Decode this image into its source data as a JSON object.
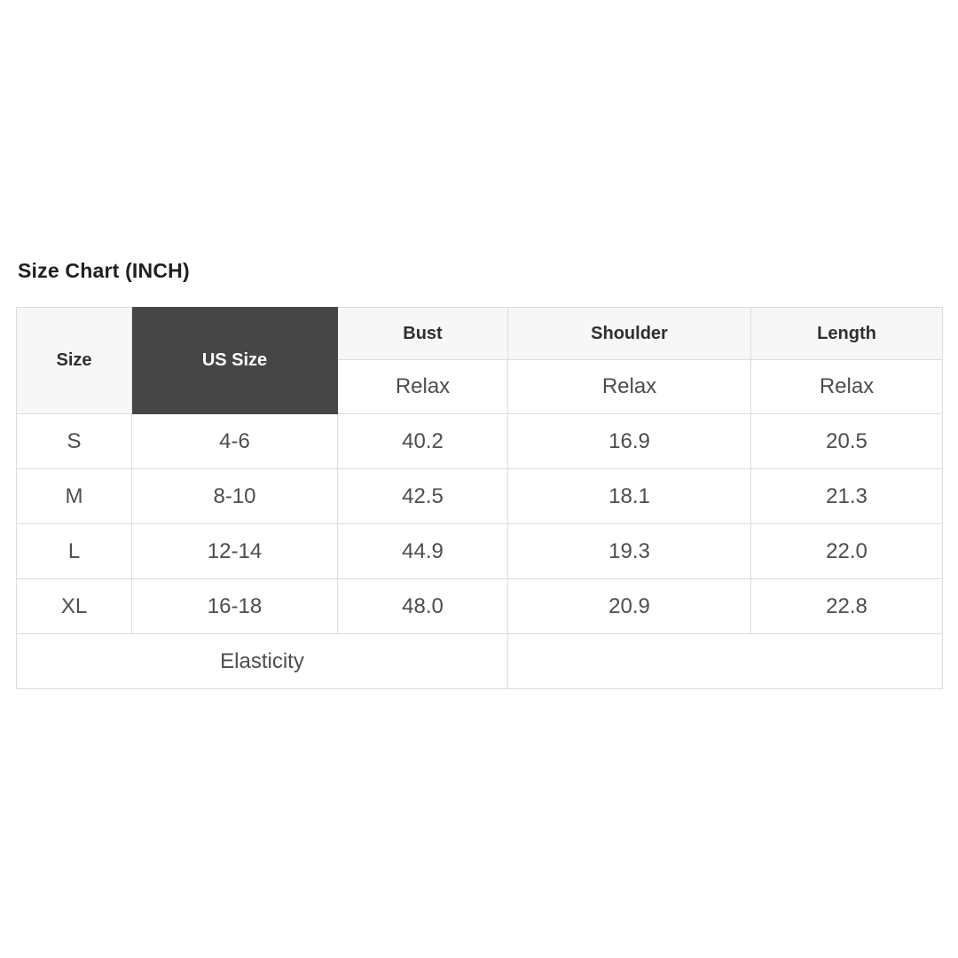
{
  "title": "Size Chart (INCH)",
  "colors": {
    "page_background": "#ffffff",
    "header_dark_background": "#464646",
    "header_light_background": "#f7f7f7",
    "border": "#dcdcdc",
    "title_text": "#1f1f1f",
    "body_text": "#4d4d4d"
  },
  "table": {
    "header": {
      "size_label": "Size",
      "us_size_label": "US Size",
      "measure_columns": [
        {
          "label": "Bust",
          "fit": "Relax"
        },
        {
          "label": "Shoulder",
          "fit": "Relax"
        },
        {
          "label": "Length",
          "fit": "Relax"
        }
      ]
    },
    "rows": [
      {
        "cells": [
          "S",
          "4-6",
          "40.2",
          "16.9",
          "20.5"
        ]
      },
      {
        "cells": [
          "M",
          "8-10",
          "42.5",
          "18.1",
          "21.3"
        ]
      },
      {
        "cells": [
          "L",
          "12-14",
          "44.9",
          "19.3",
          "22.0"
        ]
      },
      {
        "cells": [
          "XL",
          "16-18",
          "48.0",
          "20.9",
          "22.8"
        ]
      }
    ],
    "footer": {
      "elasticity_label": "Elasticity",
      "elasticity_value": ""
    }
  },
  "chart_data": {
    "type": "table",
    "title": "Size Chart (INCH)",
    "unit": "INCH",
    "fit_type": "Relax",
    "columns": [
      "Size",
      "US Size",
      "Bust (Relax)",
      "Shoulder (Relax)",
      "Length (Relax)"
    ],
    "rows": [
      [
        "S",
        "4-6",
        40.2,
        16.9,
        20.5
      ],
      [
        "M",
        "8-10",
        42.5,
        18.1,
        21.3
      ],
      [
        "L",
        "12-14",
        44.9,
        19.3,
        22.0
      ],
      [
        "XL",
        "16-18",
        48.0,
        20.9,
        22.8
      ]
    ],
    "footer_row": [
      "Elasticity",
      ""
    ]
  }
}
